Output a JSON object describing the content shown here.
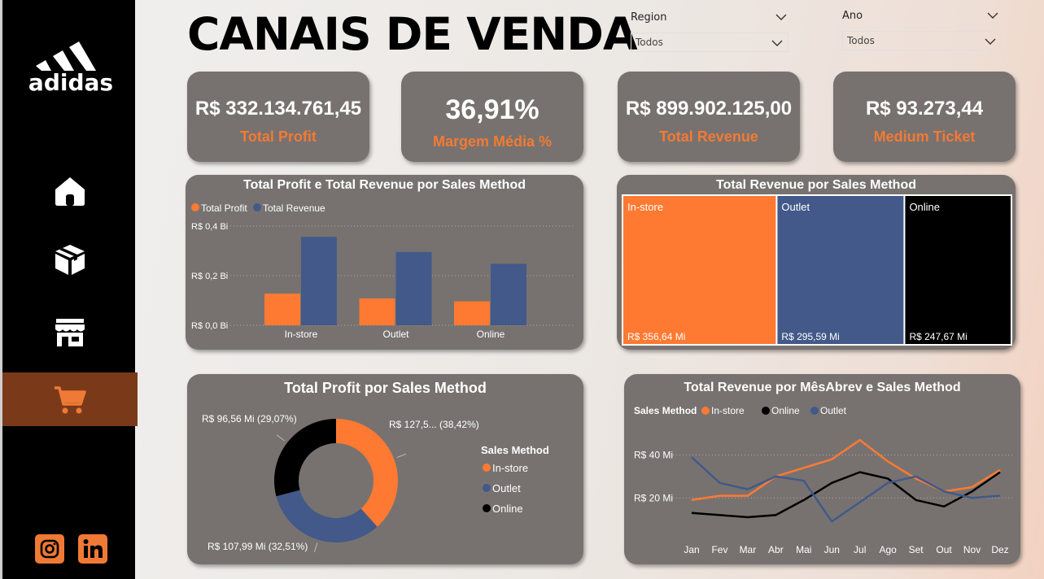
{
  "title": "CANAIS DE VENDA",
  "brand": {
    "name": "adidas"
  },
  "filters": {
    "region": {
      "label": "Region",
      "value": "Todos"
    },
    "ano": {
      "label": "Ano",
      "value": "Todos"
    }
  },
  "kpis": [
    {
      "value": "R$ 332.134.761,45",
      "label": "Total Profit"
    },
    {
      "value": "36,91%",
      "label": "Margem Média %"
    },
    {
      "value": "R$ 899.902.125,00",
      "label": "Total Revenue"
    },
    {
      "value": "R$ 93.273,44",
      "label": "Medium Ticket"
    }
  ],
  "nav": [
    "home-icon",
    "box-icon",
    "store-icon",
    "cart-icon"
  ],
  "colors": {
    "accent": "#f47a33",
    "orange": "#fe7a32",
    "blue": "#425989",
    "black": "#000000",
    "card": "#777270"
  },
  "chart_data": [
    {
      "type": "bar",
      "title": "Total Profit e Total Revenue por Sales Method",
      "categories": [
        "In-store",
        "Outlet",
        "Online"
      ],
      "series": [
        {
          "name": "Total Profit",
          "values": [
            127.59,
            107.99,
            96.56
          ]
        },
        {
          "name": "Total Revenue",
          "values": [
            356.64,
            295.59,
            247.67
          ]
        }
      ],
      "yticks": [
        "R$ 0,0 Bi",
        "R$ 0,2 Bi",
        "R$ 0,4 Bi"
      ],
      "ylim": [
        0,
        400
      ],
      "legend": "top-left"
    },
    {
      "type": "treemap",
      "title": "Total Revenue por Sales Method",
      "categories": [
        "In-store",
        "Outlet",
        "Online"
      ],
      "values": [
        356.64,
        295.59,
        247.67
      ],
      "labels": [
        "R$ 356,64 Mi",
        "R$ 295,59 Mi",
        "R$ 247,67 Mi"
      ]
    },
    {
      "type": "pie",
      "title": "Total Profit por Sales Method",
      "legend_title": "Sales Method",
      "categories": [
        "In-store",
        "Outlet",
        "Online"
      ],
      "values": [
        38.42,
        32.51,
        29.07
      ],
      "labels": [
        "R$ 127,5... (38,42%)",
        "R$ 107,99 Mi (32,51%)",
        "R$ 96,56 Mi (29,07%)"
      ]
    },
    {
      "type": "line",
      "title": "Total Revenue por MêsAbrev e Sales Method",
      "legend_title": "Sales Method",
      "x": [
        "Jan",
        "Fev",
        "Mar",
        "Abr",
        "Mai",
        "Jun",
        "Jul",
        "Ago",
        "Set",
        "Out",
        "Nov",
        "Dez"
      ],
      "series": [
        {
          "name": "In-store",
          "values": [
            19,
            21,
            21,
            30,
            34,
            38,
            47,
            37,
            29,
            23,
            25,
            33
          ]
        },
        {
          "name": "Online",
          "values": [
            13,
            12,
            11,
            12,
            19,
            27,
            32,
            29,
            19,
            16,
            23,
            32
          ]
        },
        {
          "name": "Outlet",
          "values": [
            39,
            27,
            24,
            30,
            28,
            9,
            18,
            27,
            30,
            23,
            20,
            21
          ]
        }
      ],
      "yticks": [
        "R$ 20 Mi",
        "R$ 40 Mi"
      ],
      "ylim": [
        0,
        55
      ]
    }
  ]
}
